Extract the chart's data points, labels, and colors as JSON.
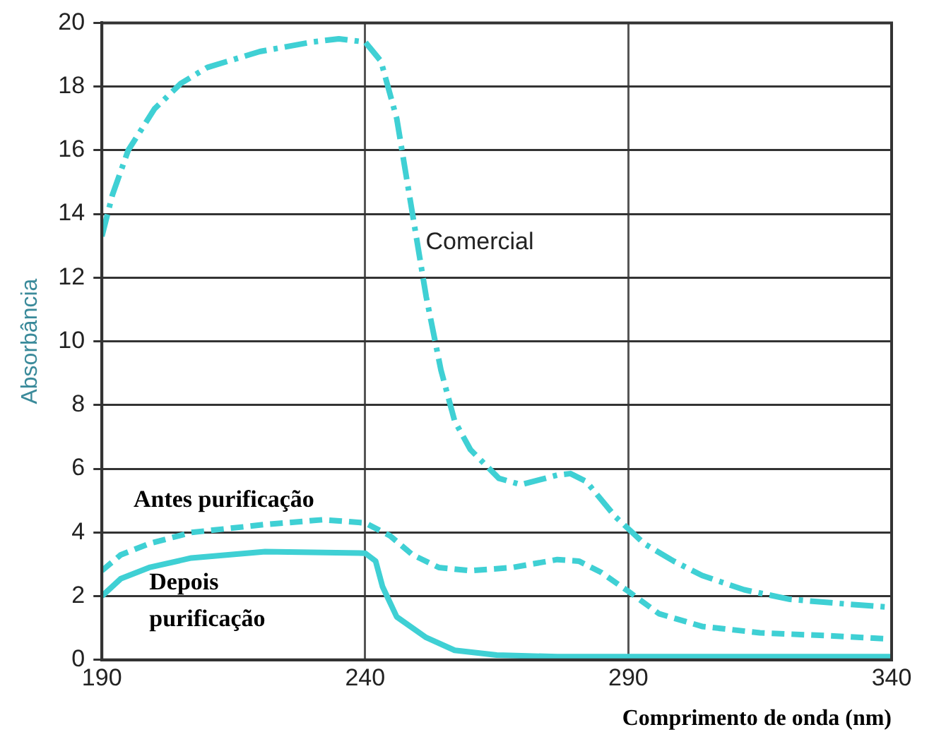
{
  "chart_data": {
    "type": "line",
    "xlabel": "Comprimento de onda (nm)",
    "ylabel": "Absorbância",
    "xlim": [
      190,
      340
    ],
    "xticks": [
      190,
      240,
      290,
      340
    ],
    "ylim": [
      0,
      20
    ],
    "yticks": [
      0,
      2,
      4,
      6,
      8,
      10,
      12,
      14,
      16,
      18,
      20
    ],
    "grid": true,
    "legend": false,
    "marker": "none",
    "series": [
      {
        "name": "Comercial",
        "color": "#3fd0d4",
        "line_style": "dashdot",
        "x": [
          190,
          192,
          195,
          200,
          205,
          210,
          220,
          230,
          235,
          240,
          243,
          246,
          248.8,
          251.6,
          254.4,
          257,
          260,
          265.4,
          269.6,
          276.5,
          279,
          282,
          287.5,
          293,
          298.6,
          304,
          312,
          320.7,
          331.7,
          340
        ],
        "values": [
          13.3,
          14.6,
          16,
          17.3,
          18.1,
          18.6,
          19.1,
          19.4,
          19.5,
          19.4,
          18.8,
          17,
          14.2,
          11.4,
          9.1,
          7.5,
          6.6,
          5.7,
          5.5,
          5.8,
          5.85,
          5.6,
          4.5,
          3.65,
          3.1,
          2.65,
          2.2,
          1.9,
          1.75,
          1.65
        ]
      },
      {
        "name": "Antes purificação",
        "color": "#3fd0d4",
        "line_style": "dashed",
        "x": [
          190,
          193.6,
          199,
          207,
          221,
          232,
          240,
          244.7,
          249,
          254,
          260,
          268,
          276.5,
          280.6,
          284.8,
          290,
          295.8,
          304,
          315,
          329,
          340
        ],
        "values": [
          2.8,
          3.3,
          3.65,
          4,
          4.25,
          4.4,
          4.3,
          3.9,
          3.3,
          2.9,
          2.8,
          2.9,
          3.15,
          3.1,
          2.75,
          2.15,
          1.45,
          1.05,
          0.85,
          0.75,
          0.65
        ]
      },
      {
        "name": "Depois purificação",
        "color": "#3fd0d4",
        "line_style": "solid",
        "x": [
          190,
          193.6,
          199,
          207,
          221,
          240,
          242,
          243.3,
          246,
          251.6,
          257,
          265,
          276.5,
          340
        ],
        "values": [
          2,
          2.55,
          2.9,
          3.2,
          3.4,
          3.35,
          3.1,
          2.3,
          1.35,
          0.7,
          0.3,
          0.15,
          0.1,
          0.1
        ]
      }
    ]
  }
}
